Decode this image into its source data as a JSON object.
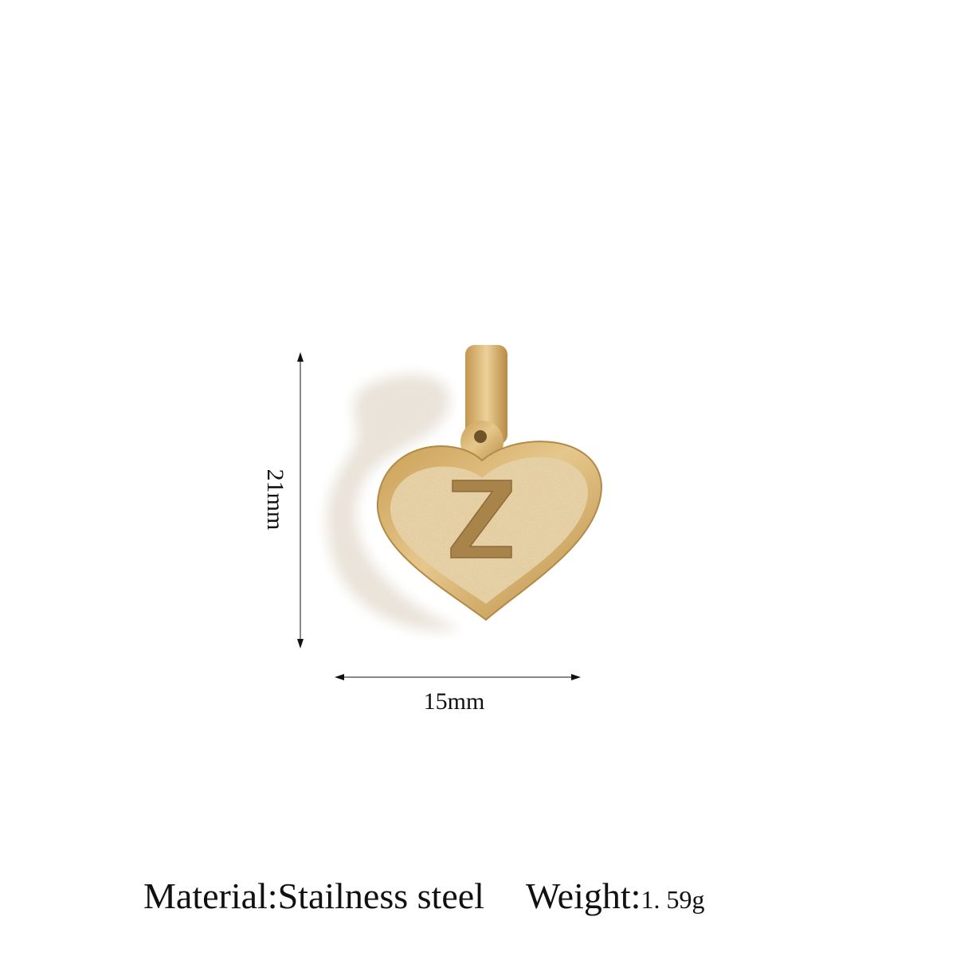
{
  "product": {
    "letter": "Z",
    "metal_color": "#d4b070",
    "shadow_color": "#e8e2d8"
  },
  "dimensions": {
    "height_label": "21mm",
    "width_label": "15mm"
  },
  "specs": {
    "material_label": "Material:",
    "material_value": "Stailness steel",
    "weight_label": "Weight:",
    "weight_value": "1. 59g"
  }
}
